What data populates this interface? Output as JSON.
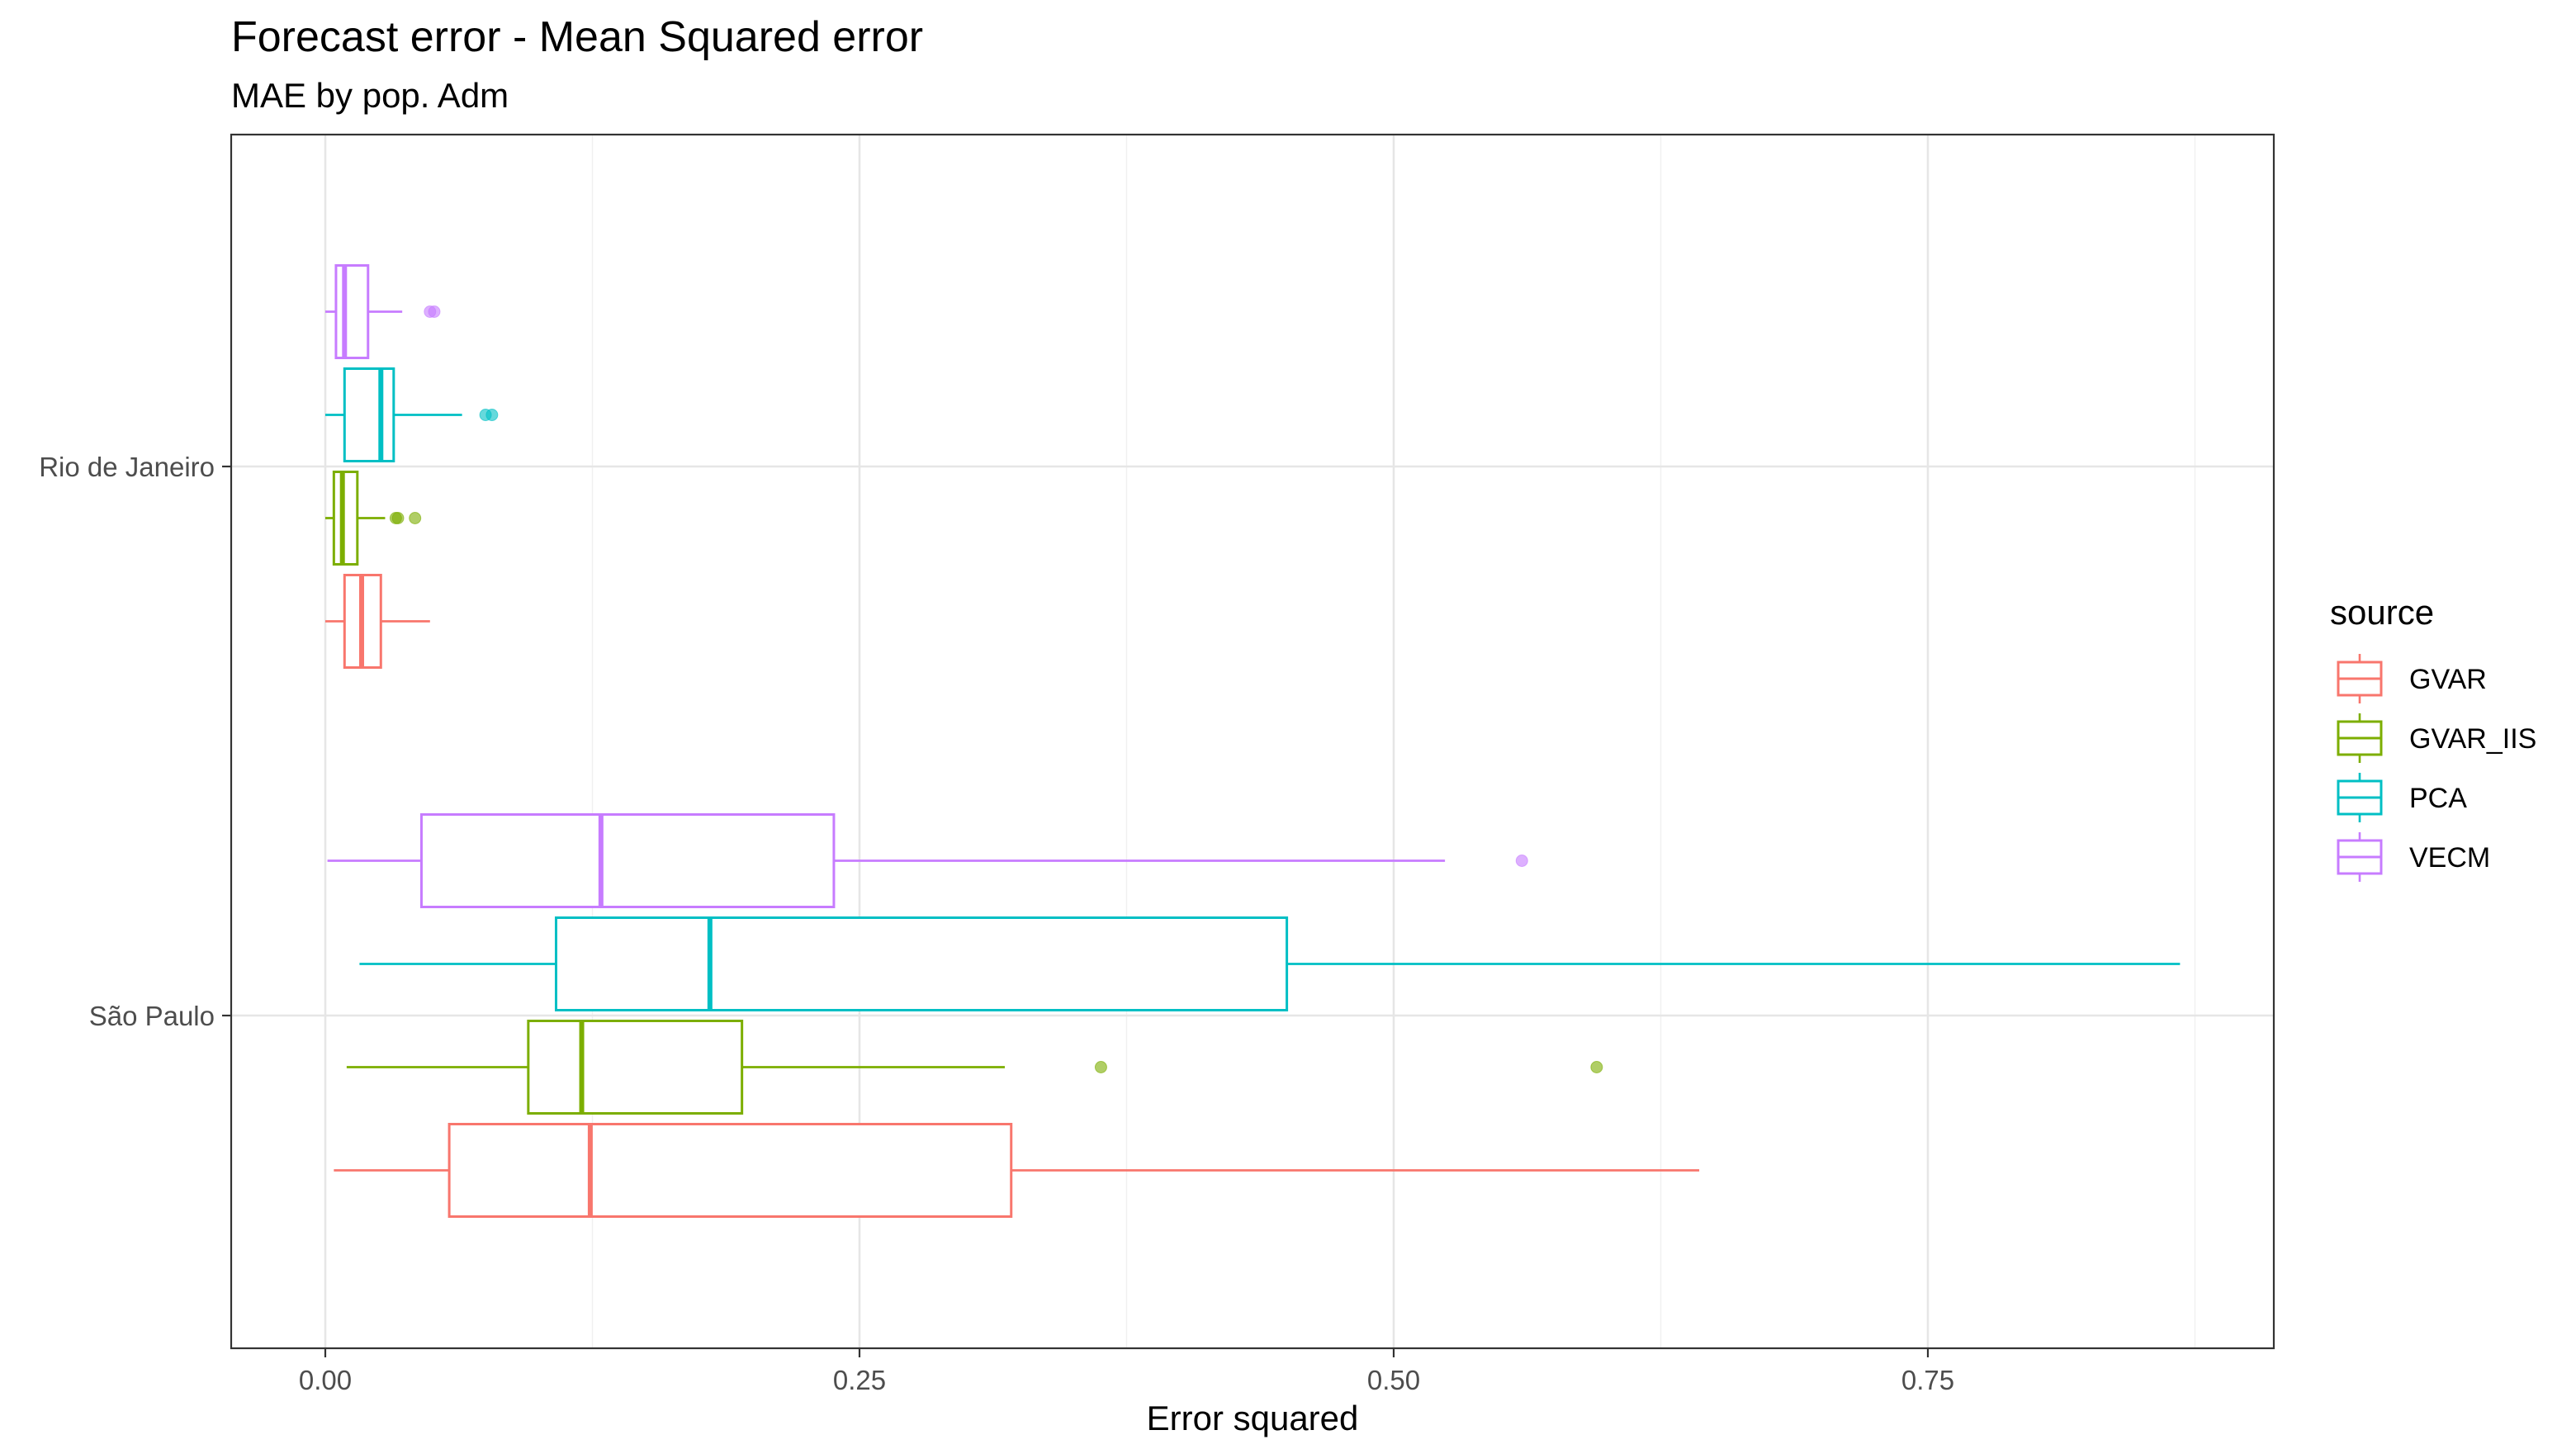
{
  "chart_data": {
    "type": "boxplot",
    "orientation": "horizontal",
    "title": "Forecast error - Mean Squared error",
    "subtitle": "MAE by pop. Adm",
    "xlabel": "Error squared",
    "ylabel": "",
    "xlim": [
      -0.02,
      0.91
    ],
    "x_ticks": [
      0.0,
      0.25,
      0.5,
      0.75
    ],
    "x_tick_labels": [
      "0.00",
      "0.25",
      "0.50",
      "0.75"
    ],
    "categories": [
      "Rio de Janeiro",
      "São Paulo"
    ],
    "grid": true,
    "legend": {
      "title": "source",
      "placement": "right"
    },
    "series": [
      {
        "name": "GVAR",
        "color": "#F8766D",
        "boxes": [
          {
            "category": "Rio de Janeiro",
            "whisker_low": 0.0,
            "q1": 0.009,
            "median": 0.017,
            "q3": 0.026,
            "whisker_high": 0.049,
            "outliers": []
          },
          {
            "category": "São Paulo",
            "whisker_low": 0.004,
            "q1": 0.058,
            "median": 0.124,
            "q3": 0.321,
            "whisker_high": 0.643,
            "outliers": []
          }
        ]
      },
      {
        "name": "GVAR_IIS",
        "color": "#7CAE00",
        "boxes": [
          {
            "category": "Rio de Janeiro",
            "whisker_low": 0.0,
            "q1": 0.004,
            "median": 0.008,
            "q3": 0.015,
            "whisker_high": 0.028,
            "outliers": [
              0.033,
              0.034,
              0.042
            ]
          },
          {
            "category": "São Paulo",
            "whisker_low": 0.01,
            "q1": 0.095,
            "median": 0.12,
            "q3": 0.195,
            "whisker_high": 0.318,
            "outliers": [
              0.363,
              0.595
            ]
          }
        ]
      },
      {
        "name": "PCA",
        "color": "#00BFC4",
        "boxes": [
          {
            "category": "Rio de Janeiro",
            "whisker_low": 0.0,
            "q1": 0.009,
            "median": 0.026,
            "q3": 0.032,
            "whisker_high": 0.064,
            "outliers": [
              0.075,
              0.078
            ]
          },
          {
            "category": "São Paulo",
            "whisker_low": 0.016,
            "q1": 0.108,
            "median": 0.18,
            "q3": 0.45,
            "whisker_high": 0.868,
            "outliers": []
          }
        ]
      },
      {
        "name": "VECM",
        "color": "#C77CFF",
        "boxes": [
          {
            "category": "Rio de Janeiro",
            "whisker_low": 0.0,
            "q1": 0.005,
            "median": 0.009,
            "q3": 0.02,
            "whisker_high": 0.036,
            "outliers": [
              0.049,
              0.051
            ]
          },
          {
            "category": "São Paulo",
            "whisker_low": 0.001,
            "q1": 0.045,
            "median": 0.129,
            "q3": 0.238,
            "whisker_high": 0.524,
            "outliers": [
              0.56
            ]
          }
        ]
      }
    ]
  }
}
